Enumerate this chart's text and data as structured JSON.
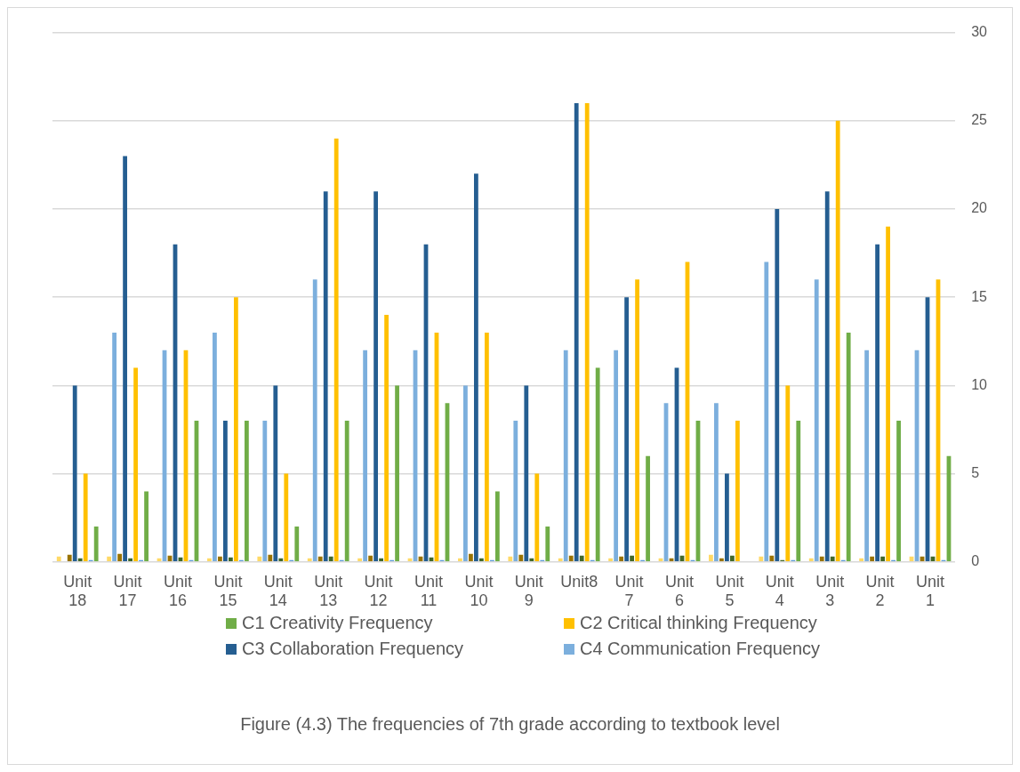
{
  "chart_data": {
    "type": "bar",
    "categories": [
      "Unit 18",
      "Unit 17",
      "Unit 16",
      "Unit 15",
      "Unit 14",
      "Unit 13",
      "Unit 12",
      "Unit 11",
      "Unit 10",
      "Unit 9",
      "Unit8",
      "Unit 7",
      "Unit 6",
      "Unit 5",
      "Unit 4",
      "Unit 3",
      "Unit 2",
      "Unit 1"
    ],
    "series": [
      {
        "color": "#ffd966",
        "values": [
          0.3,
          0.3,
          0.2,
          0.2,
          0.3,
          0.2,
          0.2,
          0.2,
          0.2,
          0.3,
          0.2,
          0.2,
          0.2,
          0.4,
          0.3,
          0.2,
          0.2,
          0.3
        ]
      },
      {
        "name": "C4 Communication Frequency",
        "color": "#7cafdd",
        "values": [
          0,
          13,
          12,
          13,
          8,
          16,
          12,
          12,
          10,
          8,
          12,
          12,
          9,
          9,
          17,
          16,
          12,
          12
        ]
      },
      {
        "color": "#997300",
        "values": [
          0.4,
          0.45,
          0.35,
          0.3,
          0.4,
          0.3,
          0.35,
          0.3,
          0.45,
          0.4,
          0.35,
          0.3,
          0.2,
          0.2,
          0.35,
          0.3,
          0.3,
          0.3
        ]
      },
      {
        "name": "C3 Collaboration Frequency",
        "color": "#255e91",
        "values": [
          10,
          23,
          18,
          8,
          10,
          21,
          21,
          18,
          22,
          10,
          26,
          15,
          11,
          5,
          20,
          21,
          18,
          15
        ]
      },
      {
        "color": "#43682b",
        "values": [
          0.2,
          0.2,
          0.25,
          0.25,
          0.2,
          0.3,
          0.2,
          0.25,
          0.2,
          0.2,
          0.35,
          0.35,
          0.35,
          0.35,
          0.1,
          0.3,
          0.3,
          0.3
        ]
      },
      {
        "name": "C2 Critical thinking Frequency",
        "color": "#ffc000",
        "values": [
          5,
          11,
          12,
          15,
          5,
          24,
          14,
          13,
          13,
          5,
          26,
          16,
          17,
          8,
          10,
          25,
          19,
          16
        ]
      },
      {
        "color": "#5b9bd5",
        "values": [
          0.1,
          0.1,
          0.1,
          0.1,
          0.1,
          0.1,
          0.1,
          0.1,
          0.1,
          0.1,
          0.1,
          0.1,
          0.1,
          null,
          0.1,
          0.1,
          0.1,
          0.1
        ]
      },
      {
        "name": "C1 Creativity Frequency",
        "color": "#70ad47",
        "values": [
          2,
          4,
          8,
          8,
          2,
          8,
          10,
          9,
          4,
          2,
          11,
          6,
          8,
          0,
          8,
          13,
          8,
          6
        ]
      }
    ],
    "ylim": [
      0,
      30
    ],
    "yticks": [
      0,
      5,
      10,
      15,
      20,
      25,
      30
    ],
    "grid": "y",
    "legend": "bottom",
    "annotations": [
      "Figure (4.3) The frequencies of 7th grade according to textbook level"
    ]
  }
}
